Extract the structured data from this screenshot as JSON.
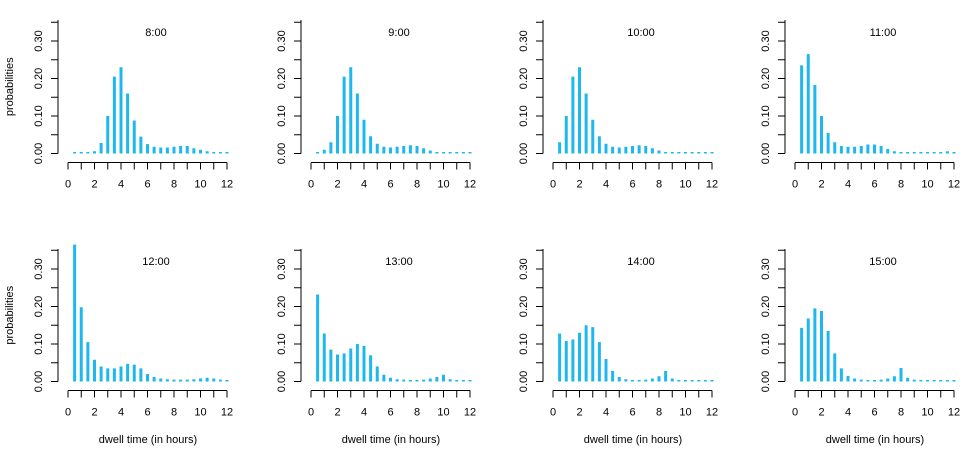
{
  "colors": {
    "bar": "#1fb8ee",
    "axis": "#000000"
  },
  "chart_data": [
    {
      "type": "bar",
      "title": "8:00",
      "xlabel": "",
      "ylabel": "probabilities",
      "xlim": [
        0,
        12
      ],
      "ylim": [
        0,
        0.35
      ],
      "xticks": [
        "0",
        "2",
        "4",
        "6",
        "8",
        "10",
        "12"
      ],
      "yticks": [
        "0.00",
        "0.10",
        "0.20",
        "0.30"
      ],
      "x": [
        0.5,
        1,
        1.5,
        2,
        2.5,
        3,
        3.5,
        4,
        4.5,
        5,
        5.5,
        6,
        6.5,
        7,
        7.5,
        8,
        8.5,
        9,
        9.5,
        10,
        10.5,
        11,
        11.5,
        12
      ],
      "values": [
        0.002,
        0.002,
        0.003,
        0.006,
        0.028,
        0.1,
        0.205,
        0.23,
        0.16,
        0.088,
        0.045,
        0.025,
        0.018,
        0.016,
        0.016,
        0.018,
        0.02,
        0.02,
        0.014,
        0.01,
        0.006,
        0.004,
        0.003,
        0.002
      ]
    },
    {
      "type": "bar",
      "title": "9:00",
      "xlabel": "",
      "ylabel": "",
      "xlim": [
        0,
        12
      ],
      "ylim": [
        0,
        0.35
      ],
      "xticks": [
        "0",
        "2",
        "4",
        "6",
        "8",
        "10",
        "12"
      ],
      "yticks": [
        "0.00",
        "0.10",
        "0.20",
        "0.30"
      ],
      "x": [
        0.5,
        1,
        1.5,
        2,
        2.5,
        3,
        3.5,
        4,
        4.5,
        5,
        5.5,
        6,
        6.5,
        7,
        7.5,
        8,
        8.5,
        9,
        9.5,
        10,
        10.5,
        11,
        11.5,
        12
      ],
      "values": [
        0.004,
        0.01,
        0.03,
        0.1,
        0.205,
        0.23,
        0.16,
        0.09,
        0.046,
        0.026,
        0.018,
        0.016,
        0.018,
        0.02,
        0.022,
        0.02,
        0.014,
        0.008,
        0.004,
        0.003,
        0.002,
        0.002,
        0.002,
        0.001
      ]
    },
    {
      "type": "bar",
      "title": "10:00",
      "xlabel": "",
      "ylabel": "",
      "xlim": [
        0,
        12
      ],
      "ylim": [
        0,
        0.35
      ],
      "xticks": [
        "0",
        "2",
        "4",
        "6",
        "8",
        "10",
        "12"
      ],
      "yticks": [
        "0.00",
        "0.10",
        "0.20",
        "0.30"
      ],
      "x": [
        0.5,
        1,
        1.5,
        2,
        2.5,
        3,
        3.5,
        4,
        4.5,
        5,
        5.5,
        6,
        6.5,
        7,
        7.5,
        8,
        8.5,
        9,
        9.5,
        10,
        10.5,
        11,
        11.5,
        12
      ],
      "values": [
        0.03,
        0.1,
        0.205,
        0.23,
        0.16,
        0.09,
        0.046,
        0.026,
        0.018,
        0.016,
        0.018,
        0.02,
        0.022,
        0.02,
        0.014,
        0.008,
        0.004,
        0.003,
        0.002,
        0.002,
        0.002,
        0.001,
        0.001,
        0.001
      ]
    },
    {
      "type": "bar",
      "title": "11:00",
      "xlabel": "",
      "ylabel": "",
      "xlim": [
        0,
        12
      ],
      "ylim": [
        0,
        0.35
      ],
      "xticks": [
        "0",
        "2",
        "4",
        "6",
        "8",
        "10",
        "12"
      ],
      "yticks": [
        "0.00",
        "0.10",
        "0.20",
        "0.30"
      ],
      "x": [
        0.5,
        1,
        1.5,
        2,
        2.5,
        3,
        3.5,
        4,
        4.5,
        5,
        5.5,
        6,
        6.5,
        7,
        7.5,
        8,
        8.5,
        9,
        9.5,
        10,
        10.5,
        11,
        11.5,
        12
      ],
      "values": [
        0.235,
        0.265,
        0.183,
        0.1,
        0.055,
        0.03,
        0.02,
        0.018,
        0.018,
        0.02,
        0.024,
        0.024,
        0.02,
        0.012,
        0.006,
        0.004,
        0.003,
        0.002,
        0.002,
        0.002,
        0.003,
        0.004,
        0.006,
        0.004
      ]
    },
    {
      "type": "bar",
      "title": "12:00",
      "xlabel": "dwell time (in hours)",
      "ylabel": "probabilities",
      "xlim": [
        0,
        12
      ],
      "ylim": [
        0,
        0.35
      ],
      "xticks": [
        "0",
        "2",
        "4",
        "6",
        "8",
        "10",
        "12"
      ],
      "yticks": [
        "0.00",
        "0.10",
        "0.20",
        "0.30"
      ],
      "x": [
        0.5,
        1,
        1.5,
        2,
        2.5,
        3,
        3.5,
        4,
        4.5,
        5,
        5.5,
        6,
        6.5,
        7,
        7.5,
        8,
        8.5,
        9,
        9.5,
        10,
        10.5,
        11,
        11.5,
        12
      ],
      "values": [
        0.365,
        0.198,
        0.105,
        0.058,
        0.04,
        0.035,
        0.035,
        0.04,
        0.047,
        0.045,
        0.035,
        0.02,
        0.012,
        0.008,
        0.006,
        0.005,
        0.005,
        0.005,
        0.006,
        0.008,
        0.01,
        0.008,
        0.005,
        0.003
      ]
    },
    {
      "type": "bar",
      "title": "13:00",
      "xlabel": "dwell time (in hours)",
      "ylabel": "",
      "xlim": [
        0,
        12
      ],
      "ylim": [
        0,
        0.35
      ],
      "xticks": [
        "0",
        "2",
        "4",
        "6",
        "8",
        "10",
        "12"
      ],
      "yticks": [
        "0.00",
        "0.10",
        "0.20",
        "0.30"
      ],
      "x": [
        0.5,
        1,
        1.5,
        2,
        2.5,
        3,
        3.5,
        4,
        4.5,
        5,
        5.5,
        6,
        6.5,
        7,
        7.5,
        8,
        8.5,
        9,
        9.5,
        10,
        10.5,
        11,
        11.5,
        12
      ],
      "values": [
        0.232,
        0.128,
        0.085,
        0.072,
        0.075,
        0.088,
        0.1,
        0.095,
        0.07,
        0.04,
        0.018,
        0.01,
        0.006,
        0.005,
        0.004,
        0.004,
        0.005,
        0.008,
        0.012,
        0.018,
        0.006,
        0.004,
        0.003,
        0.002
      ]
    },
    {
      "type": "bar",
      "title": "14:00",
      "xlabel": "dwell time (in hours)",
      "ylabel": "",
      "xlim": [
        0,
        12
      ],
      "ylim": [
        0,
        0.35
      ],
      "xticks": [
        "0",
        "2",
        "4",
        "6",
        "8",
        "10",
        "12"
      ],
      "yticks": [
        "0.00",
        "0.10",
        "0.20",
        "0.30"
      ],
      "x": [
        0.5,
        1,
        1.5,
        2,
        2.5,
        3,
        3.5,
        4,
        4.5,
        5,
        5.5,
        6,
        6.5,
        7,
        7.5,
        8,
        8.5,
        9,
        9.5,
        10,
        10.5,
        11,
        11.5,
        12
      ],
      "values": [
        0.128,
        0.108,
        0.112,
        0.13,
        0.15,
        0.145,
        0.105,
        0.06,
        0.028,
        0.012,
        0.006,
        0.004,
        0.004,
        0.005,
        0.008,
        0.014,
        0.028,
        0.008,
        0.004,
        0.003,
        0.002,
        0.002,
        0.002,
        0.001
      ]
    },
    {
      "type": "bar",
      "title": "15:00",
      "xlabel": "dwell time (in hours)",
      "ylabel": "",
      "xlim": [
        0,
        12
      ],
      "ylim": [
        0,
        0.35
      ],
      "xticks": [
        "0",
        "2",
        "4",
        "6",
        "8",
        "10",
        "12"
      ],
      "yticks": [
        "0.00",
        "0.10",
        "0.20",
        "0.30"
      ],
      "x": [
        0.5,
        1,
        1.5,
        2,
        2.5,
        3,
        3.5,
        4,
        4.5,
        5,
        5.5,
        6,
        6.5,
        7,
        7.5,
        8,
        8.5,
        9,
        9.5,
        10,
        10.5,
        11,
        11.5,
        12
      ],
      "values": [
        0.143,
        0.168,
        0.195,
        0.188,
        0.135,
        0.075,
        0.035,
        0.015,
        0.008,
        0.005,
        0.004,
        0.004,
        0.005,
        0.008,
        0.014,
        0.036,
        0.01,
        0.005,
        0.003,
        0.002,
        0.002,
        0.001,
        0.001,
        0.001
      ]
    }
  ]
}
